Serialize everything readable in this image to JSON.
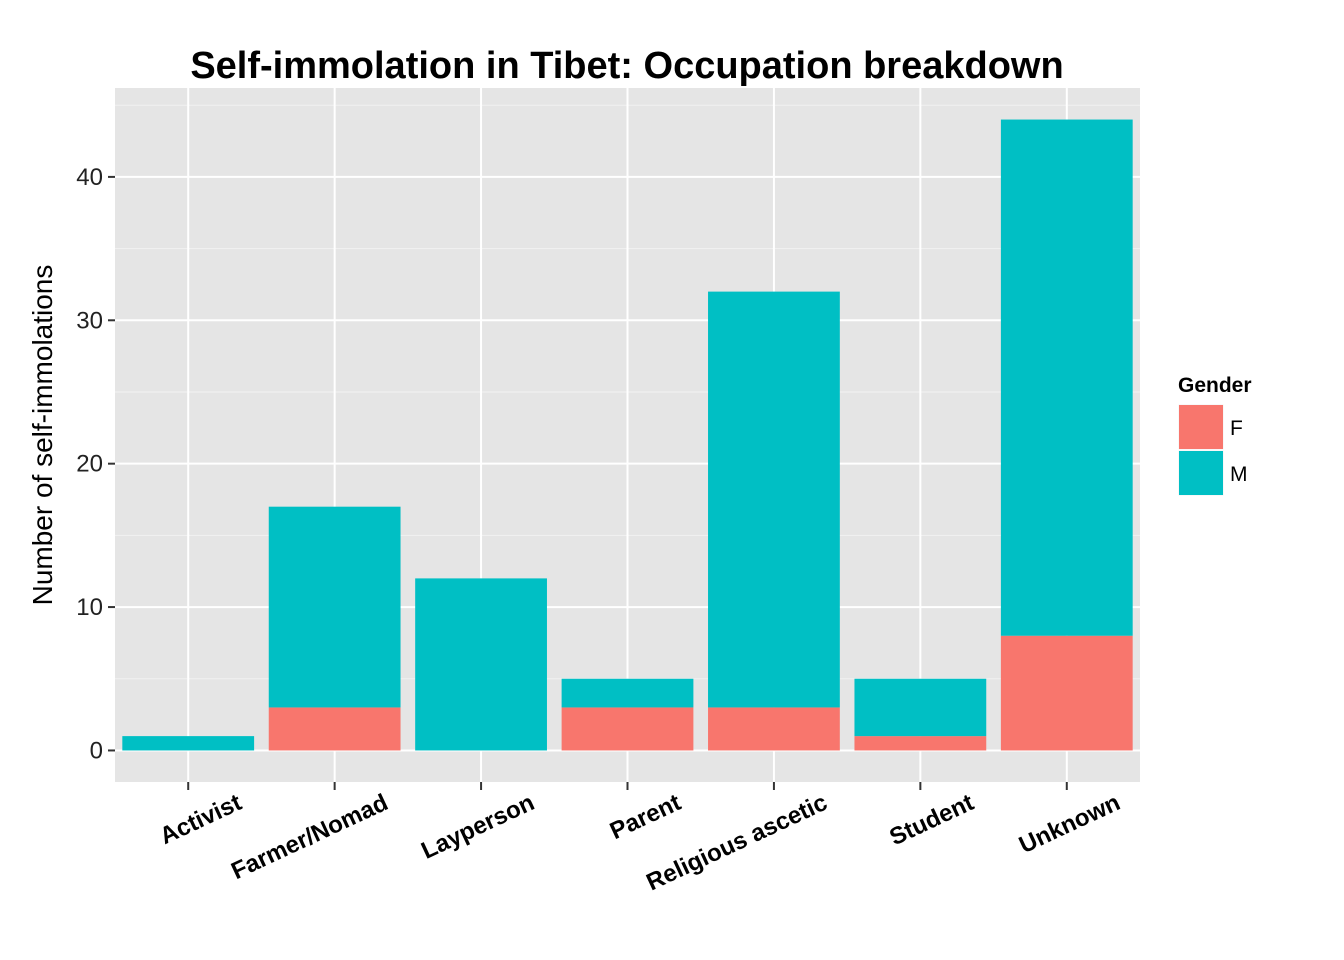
{
  "chart_data": {
    "type": "bar",
    "stacked": true,
    "title": "Self-immolation in Tibet: Occupation breakdown",
    "xlabel": "",
    "ylabel": "Number of self-immolations",
    "categories": [
      "Activist",
      "Farmer/Nomad",
      "Layperson",
      "Parent",
      "Religious ascetic",
      "Student",
      "Unknown"
    ],
    "series": [
      {
        "name": "F",
        "color": "#F8766D",
        "values": [
          0,
          3,
          0,
          3,
          3,
          1,
          8
        ]
      },
      {
        "name": "M",
        "color": "#00BFC4",
        "values": [
          1,
          14,
          12,
          2,
          29,
          4,
          36
        ]
      }
    ],
    "ylim": [
      -2.2,
      46.2
    ],
    "yticks": [
      0,
      10,
      20,
      30,
      40
    ],
    "grid": true,
    "legend": {
      "title": "Gender",
      "position": "right"
    },
    "panel_background": "#E5E5E5",
    "grid_color": "#FFFFFF"
  }
}
